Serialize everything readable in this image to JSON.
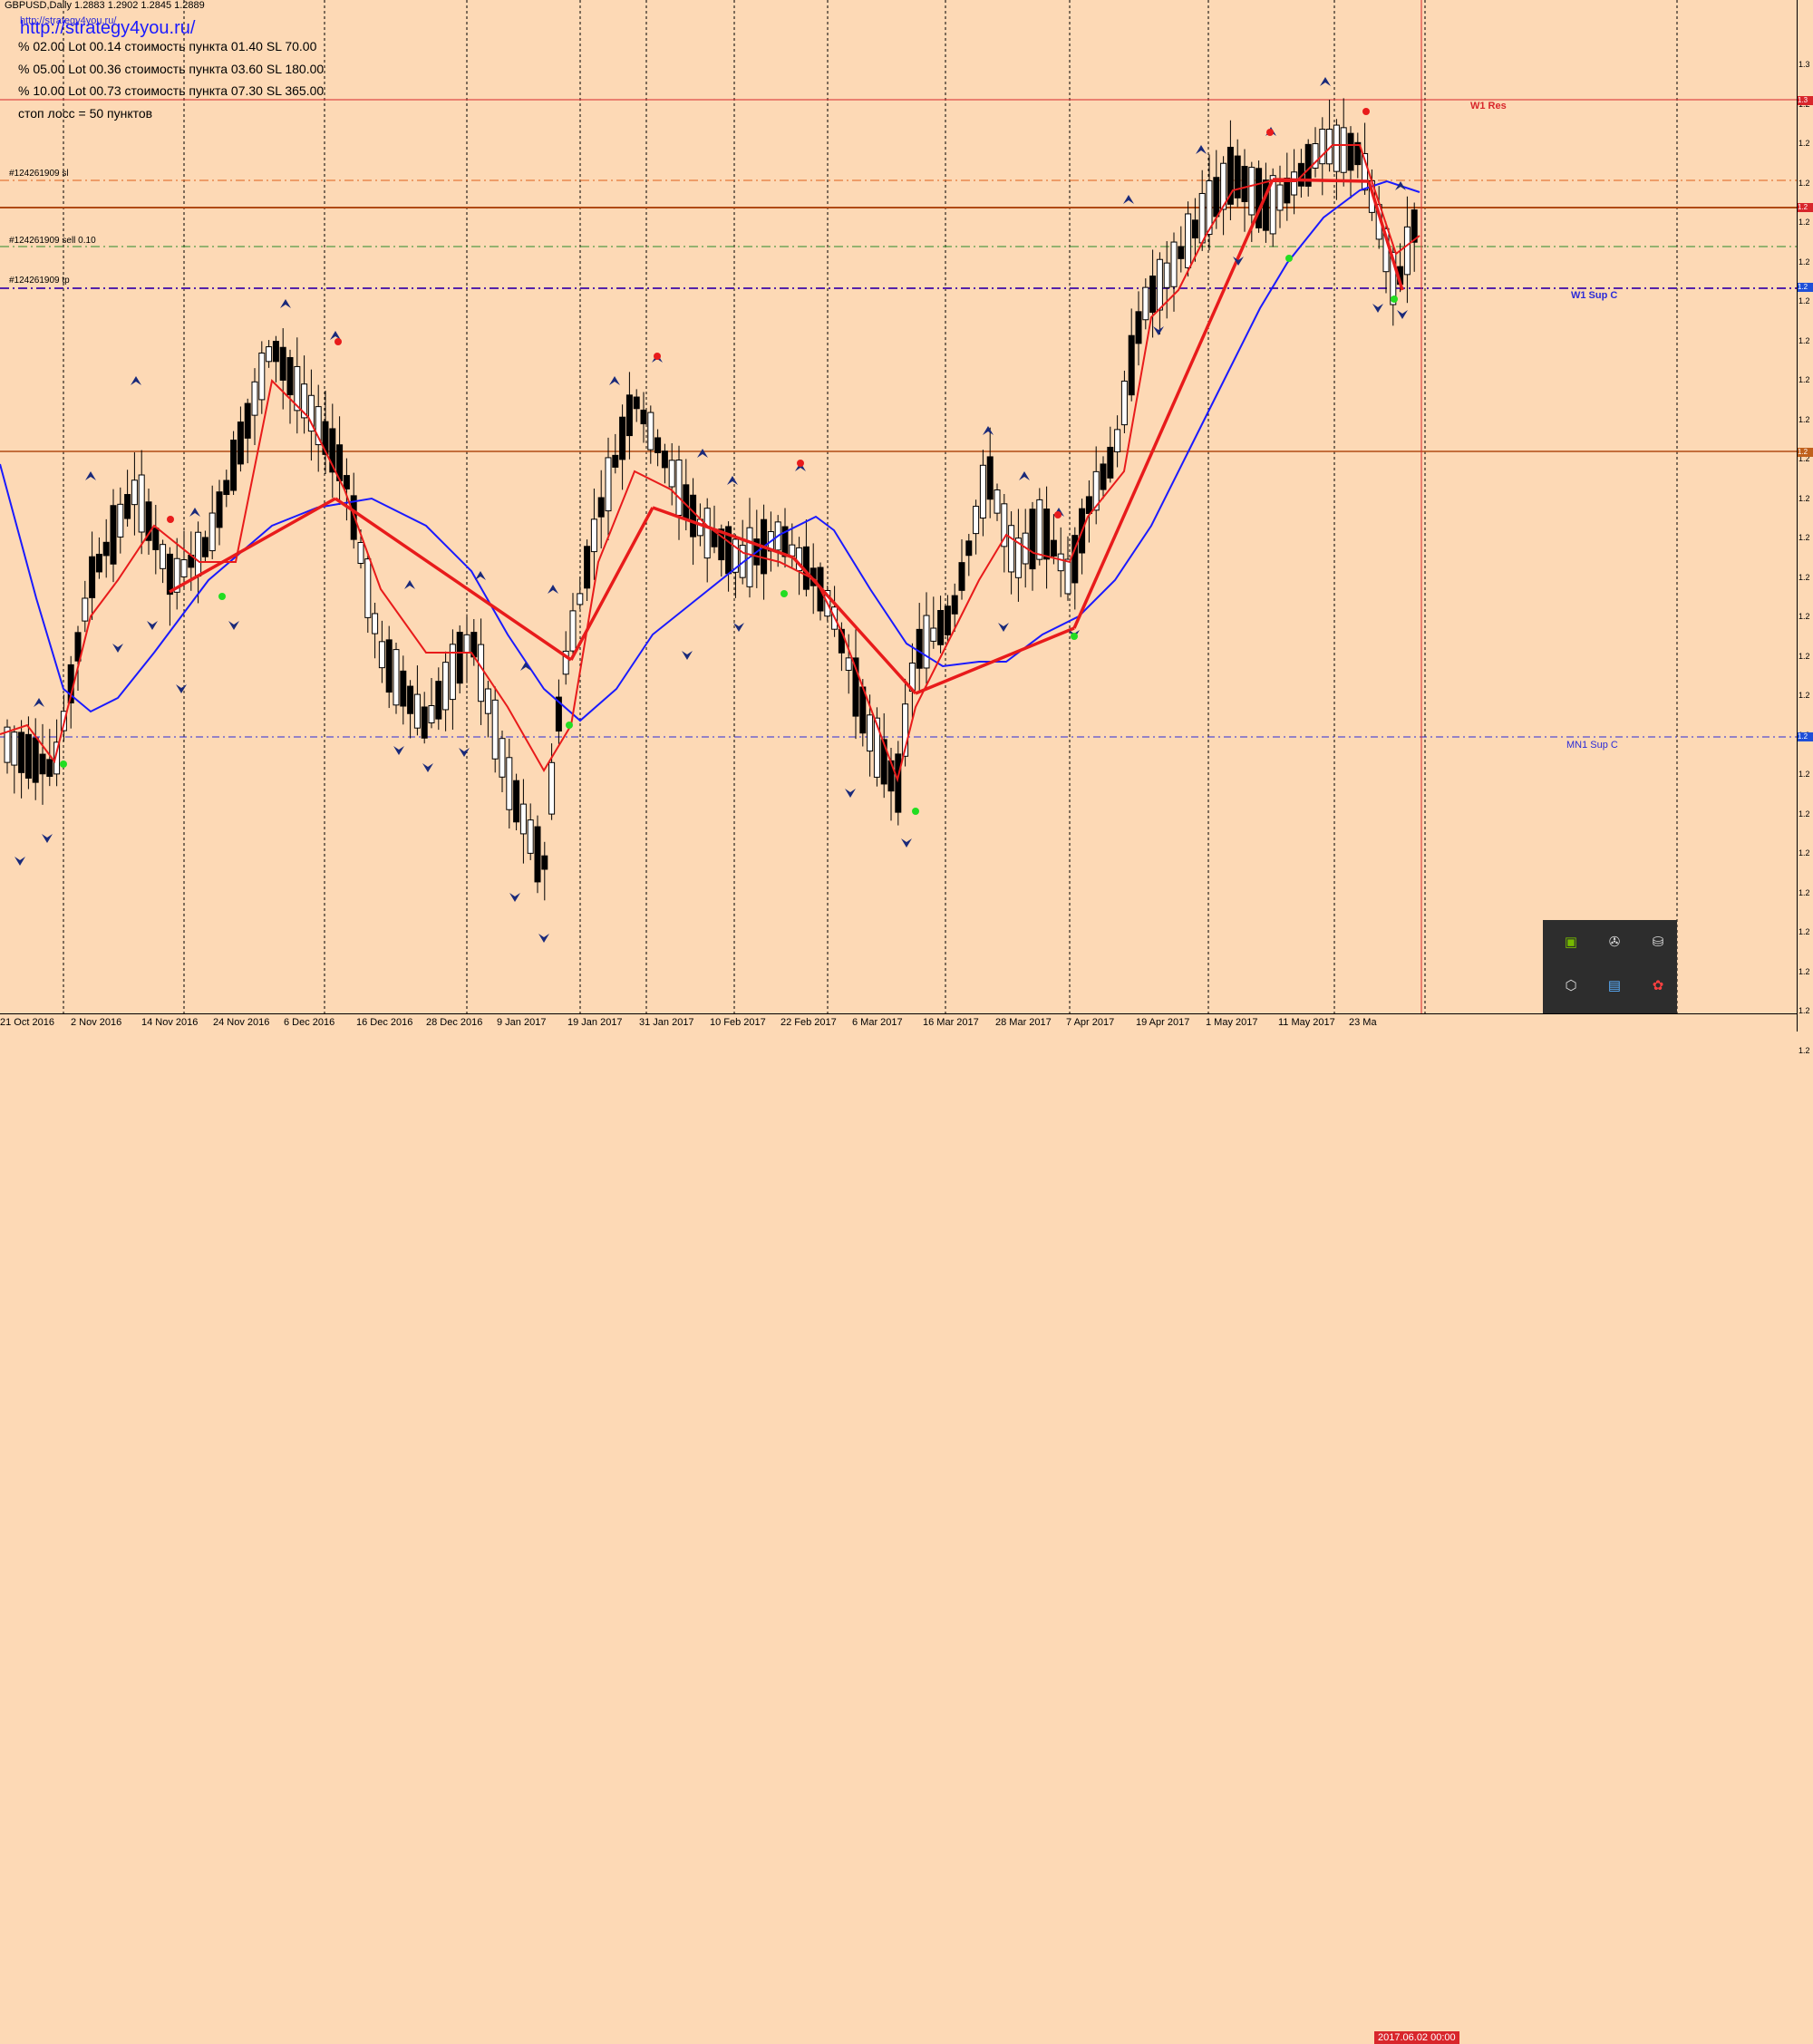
{
  "header": {
    "symbol_line": "GBPUSD,Daily  1.2883 1.2902 1.2845 1.2889",
    "site_url": "http://strategy4you.ru/",
    "url_shadow": "http://strategy4you.ru/"
  },
  "risk_lines": [
    "% 02.00  Lot 00.14  стоимость пункта 01.40  SL 70.00",
    "% 05.00  Lot 00.36  стоимость пункта 03.60  SL 180.00",
    "% 10.00  Lot 00.73  стоимость пункта 07.30  SL 365.00",
    "стоп лосс = 50 пунктов"
  ],
  "order_labels": {
    "sl": "#124261909 sl",
    "open": "#124261909 sell 0.10",
    "tp": "#124261909 tp"
  },
  "level_labels": {
    "w1_res": "W1 Res",
    "w1_sup": "W1 Sup C",
    "mn1_sup": "MN1 Sup C"
  },
  "time_axis": {
    "labels": [
      "21 Oct 2016",
      "2 Nov 2016",
      "14 Nov 2016",
      "24 Nov 2016",
      "6 Dec 2016",
      "16 Dec 2016",
      "28 Dec 2016",
      "9 Jan 2017",
      "19 Jan 2017",
      "31 Jan 2017",
      "10 Feb 2017",
      "22 Feb 2017",
      "6 Mar 2017",
      "16 Mar 2017",
      "28 Mar 2017",
      "7 Apr 2017",
      "19 Apr 2017",
      "1 May 2017",
      "11 May 2017",
      "23 Ma"
    ],
    "current": "2017.06.02 00:00"
  },
  "price_axis": {
    "labels": [
      "1.3",
      "1.2",
      "1.2",
      "1.2",
      "1.2",
      "1.2",
      "1.2",
      "1.2",
      "1.2",
      "1.2",
      "1.2",
      "1.2",
      "1.2",
      "1.2",
      "1.2",
      "1.2",
      "1.2",
      "1.2",
      "1.2",
      "1.2",
      "1.2",
      "1.2",
      "1.2",
      "1.2",
      "1.2",
      "1.2"
    ],
    "badges": [
      {
        "text": "1.3",
        "color": "#d8262b"
      },
      {
        "text": "1.2",
        "color": "#d8262b"
      },
      {
        "text": "1.2",
        "color": "#1e4fd8"
      },
      {
        "text": "1.2",
        "color": "#c0601c"
      },
      {
        "text": "1.2",
        "color": "#1e4fd8"
      }
    ]
  },
  "colors": {
    "background": "#fdd9b5",
    "candle_up": "#ffffff",
    "candle_down": "#000000",
    "fast_ma": "#e81b1b",
    "slow_ma": "#1a1aff",
    "zigzag": "#e81b1b",
    "level_res": "#d8262b",
    "level_sup": "#2b2bd8",
    "grid": "#000000"
  },
  "tray": {
    "icons": [
      "nvidia-icon",
      "satellite-icon",
      "usb-icon",
      "shield-icon",
      "monitor-icon",
      "flower-icon",
      "chat-icon",
      "pen-icon",
      "vpn-icon"
    ]
  }
}
